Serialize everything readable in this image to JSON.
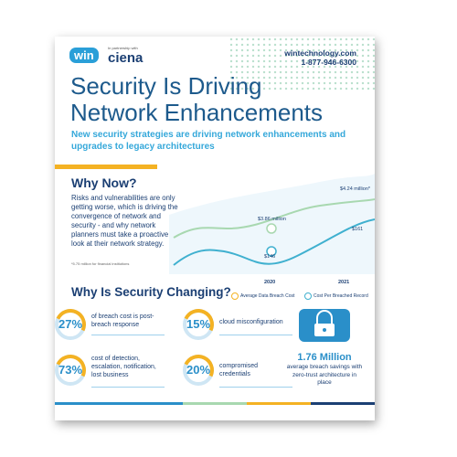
{
  "header": {
    "logo": "win",
    "partner_note": "In partnership with",
    "partner": "ciena",
    "website": "wintechnology.com",
    "phone": "1-877-946-6300"
  },
  "title_lines": [
    "Security Is Driving",
    "Network Enhancements"
  ],
  "subtitle": "New security strategies are driving network enhancements and upgrades to legacy architectures",
  "why_now": {
    "heading": "Why Now?",
    "body": "Risks and vulnerabilities are only getting worse, which is driving the convergence of network and security - and why network planners must take a proactive look at their network strategy.",
    "footnote": "*5.75 million for financial institutions"
  },
  "chart": {
    "cost_2020": "$3.86 million",
    "cost_2021": "$4.24 million*",
    "record_2020": "$146",
    "record_2021": "$161",
    "years": [
      "2020",
      "2021"
    ],
    "legend": [
      "Average Data Breach Cost",
      "Cost Per Breached Record"
    ]
  },
  "changing": {
    "heading": "Why Is Security Changing?",
    "stats": [
      {
        "value": "27%",
        "label": "of breach cost is post-breach response"
      },
      {
        "value": "15%",
        "label": "cloud misconfiguration"
      },
      {
        "value": "73%",
        "label": "cost of detection, escalation, notification, lost business"
      },
      {
        "value": "20%",
        "label": "compromised credentials"
      }
    ],
    "highlight": {
      "value": "1.76 Million",
      "label": "average breach savings with zero-trust architecture in place"
    }
  }
}
